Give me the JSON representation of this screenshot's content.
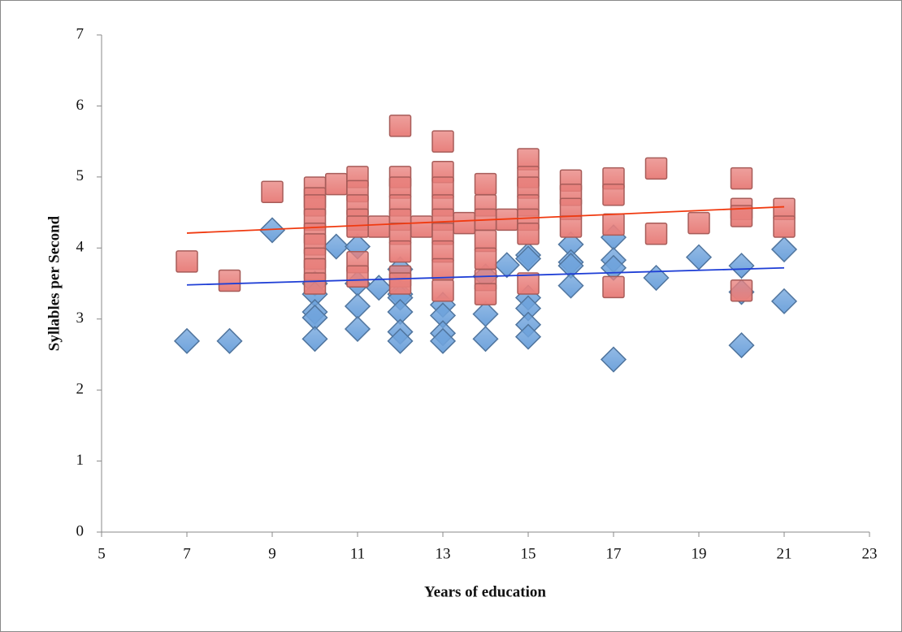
{
  "chart_data": {
    "type": "scatter",
    "xlabel": "Years of education",
    "ylabel": "Syllables per Second",
    "xlim": [
      5,
      23
    ],
    "xticks": [
      5,
      7,
      9,
      11,
      13,
      15,
      17,
      19,
      21,
      23
    ],
    "ylim": [
      0,
      7
    ],
    "yticks": [
      0,
      1,
      2,
      3,
      4,
      5,
      6,
      7
    ],
    "grid": false,
    "series": [
      {
        "marker": "diamond",
        "color": "#6fa3dc",
        "x": [
          7,
          8,
          9,
          10,
          10,
          10,
          10,
          10,
          10.5,
          11,
          11,
          11,
          11,
          11.5,
          12,
          12,
          12,
          12,
          12,
          12,
          13,
          13,
          13,
          13,
          14,
          14,
          14,
          14.5,
          15,
          15,
          15,
          15,
          15,
          15,
          16,
          16,
          16,
          16,
          17,
          17,
          17,
          17,
          18,
          19,
          20,
          20,
          20,
          21,
          21
        ],
        "values": [
          2.69,
          2.69,
          4.25,
          3.5,
          3.35,
          3.1,
          3.02,
          2.72,
          4.02,
          4.02,
          3.5,
          3.18,
          2.86,
          3.44,
          3.7,
          3.35,
          3.3,
          3.1,
          2.82,
          2.69,
          3.2,
          3.05,
          2.8,
          2.69,
          3.6,
          3.07,
          2.72,
          3.76,
          3.9,
          3.85,
          3.3,
          3.15,
          2.92,
          2.75,
          4.05,
          3.8,
          3.75,
          3.47,
          4.15,
          3.83,
          3.72,
          2.43,
          3.58,
          3.87,
          3.75,
          3.38,
          2.63,
          3.98,
          3.25
        ],
        "trendline": {
          "color": "#1f3fd6",
          "x": [
            7,
            21
          ],
          "values": [
            3.48,
            3.72
          ]
        }
      },
      {
        "marker": "square",
        "color": "#e8807c",
        "x": [
          7,
          8,
          9,
          10,
          10,
          10,
          10,
          10,
          10,
          10,
          10,
          10,
          10.5,
          11,
          11,
          11,
          11,
          11,
          11,
          11,
          11.5,
          12,
          12,
          12,
          12,
          12,
          12,
          12,
          12,
          12,
          12.5,
          13,
          13,
          13,
          13,
          13,
          13,
          13,
          13,
          13,
          13.5,
          14,
          14,
          14,
          14,
          14,
          14,
          14,
          14.5,
          15,
          15,
          15,
          15,
          15,
          15,
          15,
          16,
          16,
          16,
          16,
          17,
          17,
          17,
          17,
          18,
          18,
          19,
          20,
          20,
          20,
          20,
          21,
          21
        ],
        "values": [
          3.81,
          3.54,
          4.79,
          4.85,
          4.7,
          4.6,
          4.4,
          4.2,
          4.05,
          3.85,
          3.7,
          3.5,
          4.9,
          5.0,
          4.8,
          4.6,
          4.4,
          4.3,
          3.8,
          3.6,
          4.3,
          5.72,
          5.0,
          4.85,
          4.6,
          4.4,
          4.2,
          3.95,
          3.6,
          3.5,
          4.3,
          5.5,
          5.07,
          4.85,
          4.6,
          4.4,
          4.2,
          3.95,
          3.7,
          3.4,
          4.35,
          4.9,
          4.6,
          4.4,
          4.1,
          3.85,
          3.55,
          3.35,
          4.4,
          5.25,
          5.0,
          4.85,
          4.6,
          4.4,
          4.2,
          3.5,
          4.95,
          4.75,
          4.55,
          4.3,
          4.98,
          4.75,
          4.33,
          3.45,
          5.12,
          4.2,
          4.35,
          4.98,
          4.55,
          4.45,
          3.4,
          4.55,
          4.3
        ],
        "trendline": {
          "color": "#f03a10",
          "x": [
            7,
            21
          ],
          "values": [
            4.21,
            4.58
          ]
        }
      }
    ]
  }
}
